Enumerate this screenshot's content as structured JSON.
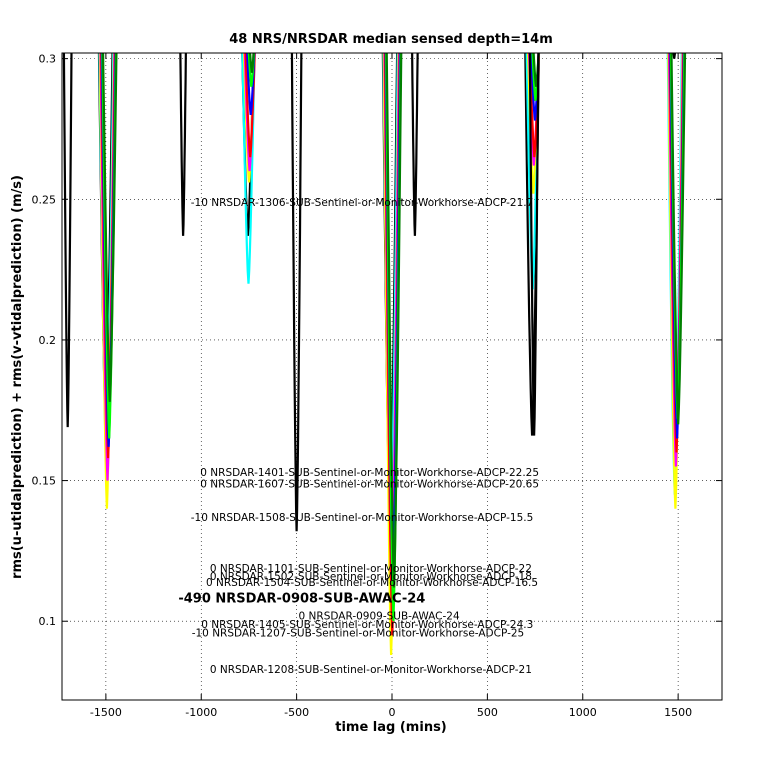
{
  "chart_data": {
    "type": "line",
    "title": "48 NRS/NRSDAR median sensed depth=14m",
    "xlabel": "time lag (mins)",
    "ylabel": "rms(u-utidalprediction) + rms(v-vtidalprediction) (m/s)",
    "xlim": [
      -1730,
      1730
    ],
    "ylim": [
      0.072,
      0.302
    ],
    "xticks": [
      -1500,
      -1000,
      -500,
      0,
      500,
      1000,
      1500
    ],
    "yticks": [
      0.1,
      0.15,
      0.2,
      0.25,
      0.3
    ],
    "xtick_labels": [
      "-1500",
      "-1000",
      "-500",
      "0",
      "500",
      "1000",
      "1500"
    ],
    "ytick_labels": [
      "0.1",
      "0.15",
      "0.2",
      "0.25",
      "0.3"
    ],
    "grid": true,
    "dips": {
      "centers": [
        -1490,
        -745,
        0,
        745,
        1490
      ],
      "half_width": 45,
      "series": [
        {
          "color": "#000000",
          "minima": [
            0.169,
            0.237,
            0.132,
            0.166,
            0.3
          ]
        },
        {
          "color": "#00ffff",
          "minima": [
            0.155,
            0.22,
            0.12,
            0.218,
            0.145
          ]
        },
        {
          "color": "#ffff00",
          "minima": [
            0.14,
            0.256,
            0.088,
            0.252,
            0.14
          ]
        },
        {
          "color": "#ff00ff",
          "minima": [
            0.15,
            0.26,
            0.108,
            0.262,
            0.155
          ]
        },
        {
          "color": "#ff0000",
          "minima": [
            0.158,
            0.265,
            0.095,
            0.265,
            0.16
          ]
        },
        {
          "color": "#0000ff",
          "minima": [
            0.162,
            0.28,
            0.11,
            0.278,
            0.165
          ]
        },
        {
          "color": "#00ff00",
          "minima": [
            0.165,
            0.29,
            0.1,
            0.285,
            0.172
          ]
        },
        {
          "color": "#008000",
          "minima": [
            0.178,
            0.295,
            0.112,
            0.29,
            0.17
          ]
        }
      ]
    },
    "black_extra_dips": [
      {
        "center": -1095,
        "min": 0.237,
        "half_width": 22
      },
      {
        "center": -500,
        "min": 0.132,
        "half_width": 30
      },
      {
        "center": 120,
        "min": 0.237,
        "half_width": 22
      },
      {
        "center": 745,
        "min": 0.166,
        "half_width": 28
      },
      {
        "center": -1700,
        "min": 0.169,
        "half_width": 25
      }
    ],
    "annotations": [
      {
        "text": "-10 NRSDAR-1306-SUB-Sentinel-or-Monitor-Workhorse-ADCP-21.7",
        "x": -1055,
        "y": 0.249,
        "big": false
      },
      {
        "text": "0 NRSDAR-1401-SUB-Sentinel-or-Monitor-Workhorse-ADCP-22.25",
        "x": -1005,
        "y": 0.153,
        "big": false
      },
      {
        "text": "0 NRSDAR-1607-SUB-Sentinel-or-Monitor-Workhorse-ADCP-20.65",
        "x": -1005,
        "y": 0.149,
        "big": false
      },
      {
        "text": "-10 NRSDAR-1508-SUB-Sentinel-or-Monitor-Workhorse-ADCP-15.5",
        "x": -1055,
        "y": 0.137,
        "big": false
      },
      {
        "text": "0 NRSDAR-1101-SUB-Sentinel-or-Monitor-Workhorse-ADCP-22",
        "x": -955,
        "y": 0.119,
        "big": false
      },
      {
        "text": "0 NRSDAR-1502-SUB-Sentinel-or-Monitor-Workhorse-ADCP-18",
        "x": -955,
        "y": 0.116,
        "big": false
      },
      {
        "text": "0 NRSDAR-1504-SUB-Sentinel-or-Monitor-Workhorse-ADCP-16.5",
        "x": -975,
        "y": 0.114,
        "big": false
      },
      {
        "text": "-490 NRSDAR-0908-SUB-AWAC-24",
        "x": -1120,
        "y": 0.108,
        "big": true
      },
      {
        "text": "0 NRSDAR-0909-SUB-AWAC-24",
        "x": -490,
        "y": 0.102,
        "big": false
      },
      {
        "text": "0 NRSDAR-1405-SUB-Sentinel-or-Monitor-Workhorse-ADCP-24.3",
        "x": -1000,
        "y": 0.099,
        "big": false
      },
      {
        "text": "-10 NRSDAR-1207-SUB-Sentinel-or-Monitor-Workhorse-ADCP-25",
        "x": -1050,
        "y": 0.096,
        "big": false
      },
      {
        "text": "0 NRSDAR-1208-SUB-Sentinel-or-Monitor-Workhorse-ADCP-21",
        "x": -955,
        "y": 0.083,
        "big": false
      }
    ]
  }
}
